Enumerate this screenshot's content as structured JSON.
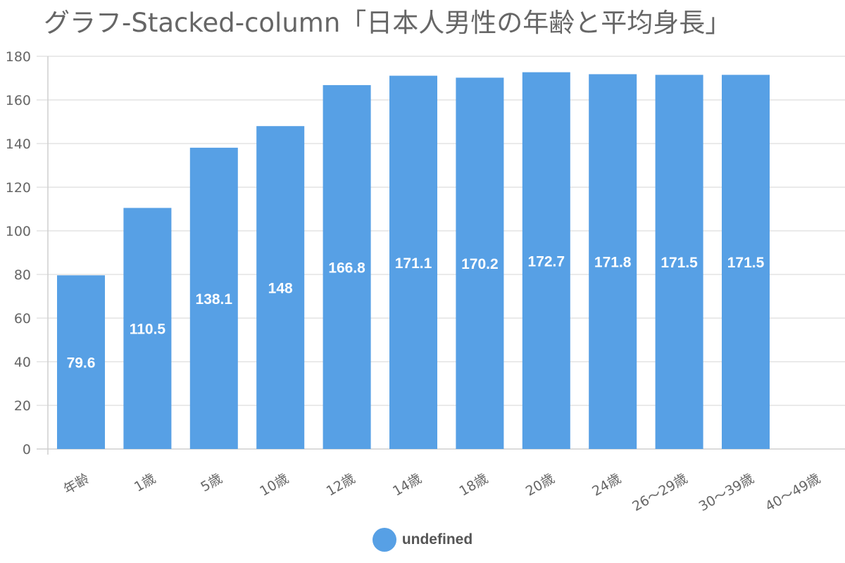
{
  "title": "グラフ-Stacked-column「日本人男性の年齢と平均身長」",
  "legend": {
    "label": "undefined",
    "position": "bottom-center"
  },
  "colors": {
    "bar": "#57a0e5",
    "grid": "#e3e3e3",
    "axis_text": "#666666",
    "data_label": "#ffffff"
  },
  "chart_data": {
    "type": "bar",
    "stacked": true,
    "title": "グラフ-Stacked-column「日本人男性の年齢と平均身長」",
    "categories": [
      "年齢",
      "1歳",
      "5歳",
      "10歳",
      "12歳",
      "14歳",
      "18歳",
      "20歳",
      "24歳",
      "26～29歳",
      "30～39歳",
      "40～49歳"
    ],
    "values": [
      79.6,
      110.5,
      138.1,
      148,
      166.8,
      171.1,
      170.2,
      172.7,
      171.8,
      171.5,
      171.5,
      null
    ],
    "data_labels": [
      "79.6",
      "110.5",
      "138.1",
      "148",
      "166.8",
      "171.1",
      "170.2",
      "172.7",
      "171.8",
      "171.5",
      "171.5",
      ""
    ],
    "series": [
      {
        "name": "undefined",
        "values": [
          79.6,
          110.5,
          138.1,
          148,
          166.8,
          171.1,
          170.2,
          172.7,
          171.8,
          171.5,
          171.5,
          null
        ]
      }
    ],
    "ylim": [
      0,
      180
    ],
    "yticks": [
      0,
      20,
      40,
      60,
      80,
      100,
      120,
      140,
      160,
      180
    ],
    "xlabel": "",
    "ylabel": "",
    "grid": true,
    "legend_position": "bottom"
  }
}
